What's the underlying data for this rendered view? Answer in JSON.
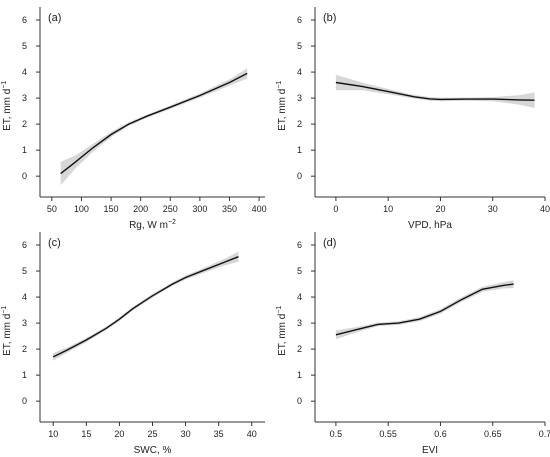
{
  "chart_data": [
    {
      "type": "line",
      "panel_label": "(a)",
      "xlabel": "Rg, W m",
      "xlabel_sup": "−2",
      "ylabel": "ET, mm d",
      "ylabel_sup": "−1",
      "xlim": [
        30,
        410
      ],
      "ylim": [
        -0.8,
        6.5
      ],
      "xticks": [
        50,
        100,
        150,
        200,
        250,
        300,
        350,
        400
      ],
      "xtick_labels": [
        "50",
        "100",
        "150",
        "200",
        "250",
        "300",
        "350",
        "400"
      ],
      "yticks": [
        0,
        1,
        2,
        3,
        4,
        5,
        6
      ],
      "ytick_labels": [
        "0",
        "1",
        "2",
        "3",
        "4",
        "5",
        "6"
      ],
      "series": [
        {
          "x": [
            65,
            90,
            120,
            150,
            180,
            210,
            250,
            300,
            350,
            380
          ],
          "y": [
            0.1,
            0.55,
            1.1,
            1.6,
            2.0,
            2.3,
            2.65,
            3.1,
            3.6,
            3.95
          ],
          "ci_lower": [
            -0.35,
            0.3,
            0.95,
            1.5,
            1.93,
            2.24,
            2.58,
            3.02,
            3.48,
            3.75
          ],
          "ci_upper": [
            0.55,
            0.8,
            1.25,
            1.7,
            2.07,
            2.36,
            2.72,
            3.18,
            3.72,
            4.15
          ]
        }
      ]
    },
    {
      "type": "line",
      "panel_label": "(b)",
      "xlabel": "VPD, hPa",
      "xlabel_sup": "",
      "ylabel": "ET, mm d",
      "ylabel_sup": "−1",
      "xlim": [
        -4,
        40
      ],
      "ylim": [
        -0.8,
        6.5
      ],
      "xticks": [
        0,
        10,
        20,
        30,
        40
      ],
      "xtick_labels": [
        "0",
        "10",
        "20",
        "30",
        "40"
      ],
      "yticks": [
        0,
        1,
        2,
        3,
        4,
        5,
        6
      ],
      "ytick_labels": [
        "0",
        "1",
        "2",
        "3",
        "4",
        "5",
        "6"
      ],
      "series": [
        {
          "x": [
            0,
            5,
            10,
            15,
            18,
            20,
            25,
            30,
            35,
            38
          ],
          "y": [
            3.6,
            3.45,
            3.25,
            3.05,
            2.97,
            2.95,
            2.96,
            2.96,
            2.93,
            2.92
          ],
          "ci_lower": [
            3.3,
            3.3,
            3.15,
            2.98,
            2.9,
            2.88,
            2.9,
            2.88,
            2.75,
            2.62
          ],
          "ci_upper": [
            3.9,
            3.6,
            3.35,
            3.12,
            3.04,
            3.02,
            3.02,
            3.04,
            3.11,
            3.22
          ]
        }
      ]
    },
    {
      "type": "line",
      "panel_label": "(c)",
      "xlabel": "SWC, %",
      "xlabel_sup": "",
      "ylabel": "ET, mm d",
      "ylabel_sup": "−1",
      "xlim": [
        8,
        42
      ],
      "ylim": [
        -0.8,
        6.5
      ],
      "xticks": [
        10,
        15,
        20,
        25,
        30,
        35,
        40
      ],
      "xtick_labels": [
        "10",
        "15",
        "20",
        "25",
        "30",
        "35",
        "40"
      ],
      "yticks": [
        0,
        1,
        2,
        3,
        4,
        5,
        6
      ],
      "ytick_labels": [
        "0",
        "1",
        "2",
        "3",
        "4",
        "5",
        "6"
      ],
      "series": [
        {
          "x": [
            10,
            12,
            15,
            18,
            20,
            22,
            25,
            28,
            30,
            33,
            36,
            38
          ],
          "y": [
            1.7,
            1.95,
            2.35,
            2.8,
            3.15,
            3.55,
            4.05,
            4.5,
            4.75,
            5.05,
            5.35,
            5.55
          ],
          "ci_lower": [
            1.55,
            1.85,
            2.27,
            2.73,
            3.08,
            3.48,
            3.98,
            4.43,
            4.67,
            4.95,
            5.22,
            5.35
          ],
          "ci_upper": [
            1.85,
            2.05,
            2.43,
            2.87,
            3.22,
            3.62,
            4.12,
            4.57,
            4.83,
            5.15,
            5.48,
            5.75
          ]
        }
      ]
    },
    {
      "type": "line",
      "panel_label": "(d)",
      "xlabel": "EVI",
      "xlabel_sup": "",
      "ylabel": "ET, mm d",
      "ylabel_sup": "−1",
      "xlim": [
        0.48,
        0.7
      ],
      "ylim": [
        -0.8,
        6.5
      ],
      "xticks": [
        0.5,
        0.55,
        0.6,
        0.65,
        0.7
      ],
      "xtick_labels": [
        "0.5",
        "0.55",
        "0.6",
        "0.65",
        "0.7"
      ],
      "yticks": [
        0,
        1,
        2,
        3,
        4,
        5,
        6
      ],
      "ytick_labels": [
        "0",
        "1",
        "2",
        "3",
        "4",
        "5",
        "6"
      ],
      "series": [
        {
          "x": [
            0.5,
            0.52,
            0.54,
            0.56,
            0.58,
            0.6,
            0.62,
            0.64,
            0.66,
            0.67
          ],
          "y": [
            2.55,
            2.75,
            2.95,
            3.0,
            3.15,
            3.45,
            3.9,
            4.3,
            4.45,
            4.5
          ],
          "ci_lower": [
            2.38,
            2.65,
            2.88,
            2.93,
            3.07,
            3.36,
            3.81,
            4.2,
            4.33,
            4.35
          ],
          "ci_upper": [
            2.72,
            2.85,
            3.02,
            3.07,
            3.23,
            3.54,
            3.99,
            4.4,
            4.57,
            4.65
          ]
        }
      ]
    }
  ]
}
